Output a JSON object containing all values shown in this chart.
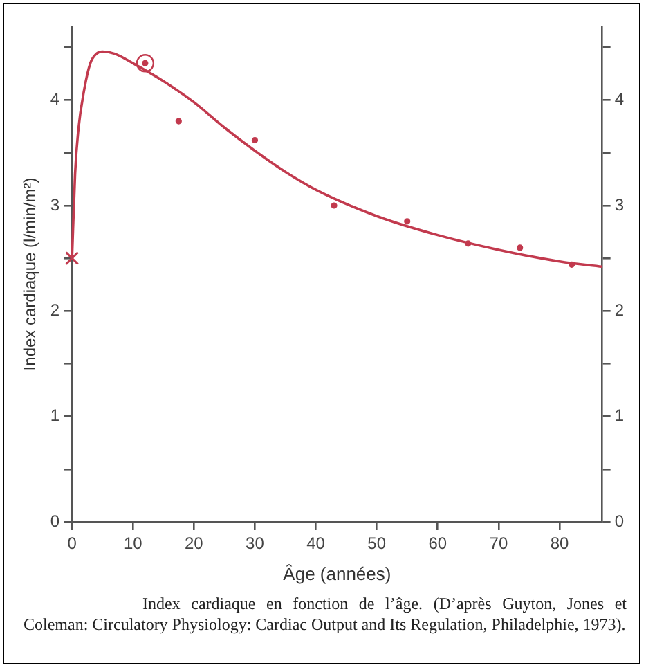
{
  "chart_data": {
    "type": "scatter",
    "xlabel": "Âge (années)",
    "ylabel": "Index cardiaque (l/min/m²)",
    "xlim": [
      0,
      87
    ],
    "xticks": [
      0,
      10,
      20,
      30,
      40,
      50,
      60,
      70,
      80
    ],
    "ylim": [
      0,
      4.7
    ],
    "yticks": [
      0,
      {
        "value": 0.5,
        "label": null
      },
      1,
      {
        "value": 1.5,
        "label": null
      },
      2,
      {
        "value": 2.5,
        "label": null
      },
      3,
      {
        "value": 3.5,
        "label": null
      },
      4,
      {
        "value": 4.5,
        "label": null
      }
    ],
    "y2lim": [
      0,
      4.7
    ],
    "y2ticks": [
      0,
      {
        "value": 0.5,
        "label": null
      },
      1,
      {
        "value": 1.5,
        "label": null
      },
      2,
      {
        "value": 2.5,
        "label": null
      },
      3,
      {
        "value": 3.5,
        "label": null
      },
      4,
      {
        "value": 4.5,
        "label": null
      }
    ],
    "grid": false,
    "legend": false,
    "series": [
      {
        "type": "line",
        "color": "#c23a4e",
        "marker": "none",
        "line_style": "solid",
        "x": [
          0,
          0.5,
          1,
          2,
          3,
          4,
          5,
          7,
          10,
          15,
          20,
          25,
          30,
          35,
          40,
          50,
          60,
          70,
          80,
          87
        ],
        "values": [
          2.5,
          3.3,
          3.7,
          4.1,
          4.35,
          4.44,
          4.46,
          4.44,
          4.35,
          4.18,
          3.98,
          3.74,
          3.52,
          3.32,
          3.15,
          2.9,
          2.72,
          2.58,
          2.47,
          2.42
        ]
      },
      {
        "color": "#c23a4e",
        "marker": "circle",
        "x": [
          17.5,
          30,
          43,
          55,
          65,
          73.5,
          82
        ],
        "values": [
          3.8,
          3.62,
          3.0,
          2.85,
          2.64,
          2.6,
          2.44
        ]
      },
      {
        "color": "#c23a4e",
        "marker": "circle-ring",
        "x": [
          12
        ],
        "values": [
          4.35
        ]
      },
      {
        "color": "#c23a4e",
        "marker": "cross",
        "x": [
          0
        ],
        "values": [
          2.5
        ]
      }
    ],
    "annotations": [
      "Index cardiaque en fonction de l’âge. (D’après Guyton, Jones et Coleman: Circulatory Physiology: Cardiac Output and Its Regulation, Philadelphie, 1973)."
    ]
  }
}
